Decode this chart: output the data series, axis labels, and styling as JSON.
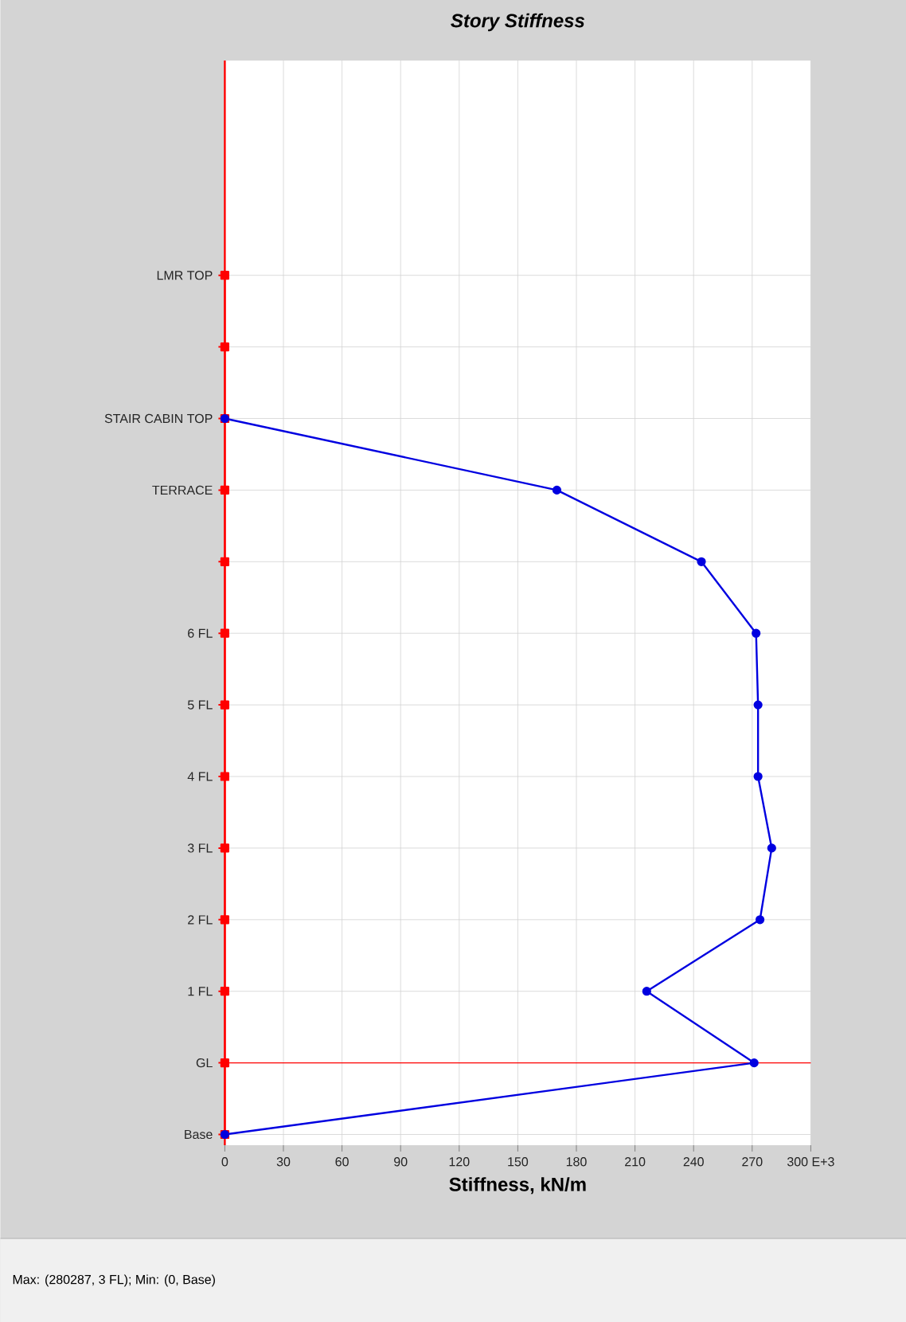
{
  "chart_data": {
    "type": "line",
    "orientation": "horizontal",
    "title": "Story Stiffness",
    "xlabel": "Stiffness, kN/m",
    "xlim": [
      0,
      300
    ],
    "xticks": [
      0,
      30,
      60,
      90,
      120,
      150,
      180,
      210,
      240,
      270,
      {
        "value": 300,
        "label": "300 E+3"
      }
    ],
    "categories": [
      "LMR TOP",
      null,
      "STAIR CABIN TOP",
      "TERRACE",
      null,
      "6 FL",
      "5 FL",
      "4 FL",
      "3 FL",
      "2 FL",
      "1 FL",
      "GL",
      "Base"
    ],
    "series": [
      {
        "color": "#ff0000",
        "marker": "square",
        "values": [
          0,
          0,
          0,
          0,
          0,
          0,
          0,
          0,
          0,
          0,
          0,
          0,
          0
        ]
      },
      {
        "color": "#0000e0",
        "marker": "circle",
        "values": [
          null,
          null,
          0,
          170,
          244,
          272,
          273,
          273,
          280,
          274,
          216,
          271,
          0
        ]
      }
    ],
    "ref_lines": [
      {
        "axis": "y",
        "value": "GL",
        "color": "#ff0000"
      }
    ],
    "grid": true,
    "annotations": [
      "Max: (280287, 3 FL);  Min: (0, Base)"
    ]
  }
}
